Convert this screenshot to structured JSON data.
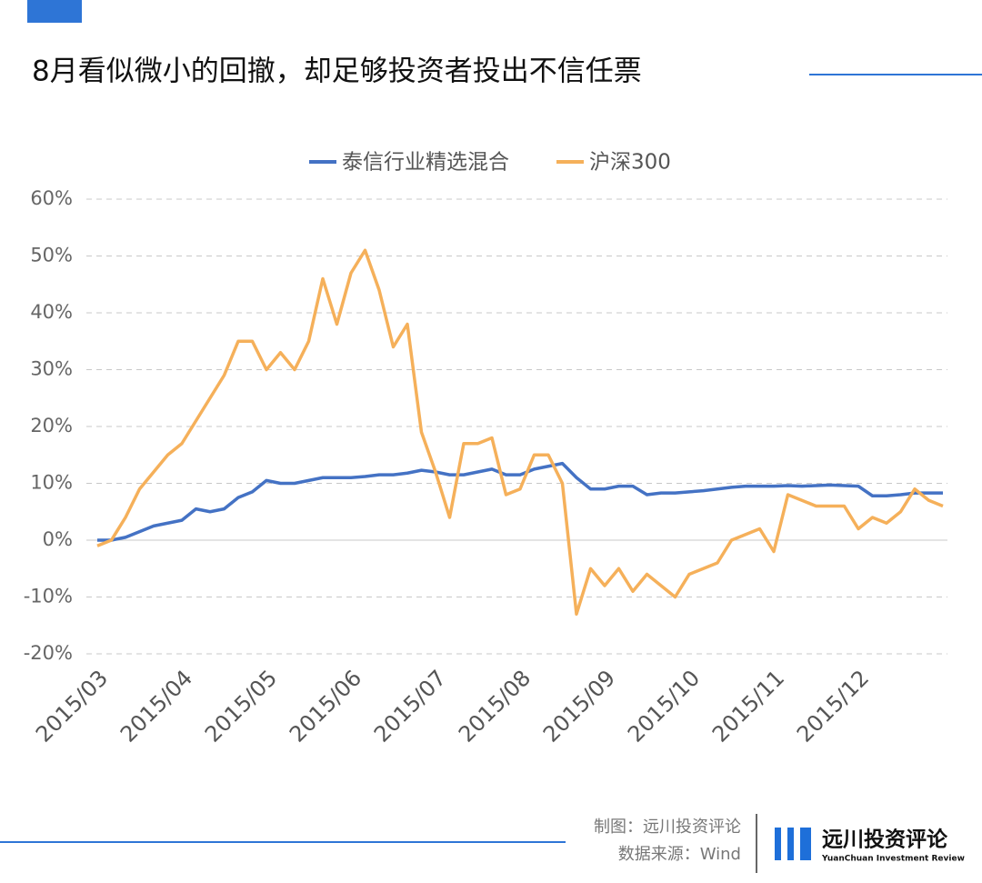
{
  "chart_data": {
    "type": "line",
    "title": "8月看似微小的回撤，却足够投资者投出不信任票",
    "categories": [
      "2015/03",
      null,
      null,
      null,
      null,
      null,
      "2015/04",
      null,
      null,
      null,
      null,
      null,
      "2015/05",
      null,
      null,
      null,
      null,
      null,
      "2015/06",
      null,
      null,
      null,
      null,
      null,
      "2015/07",
      null,
      null,
      null,
      null,
      null,
      "2015/08",
      null,
      null,
      null,
      null,
      null,
      "2015/09",
      null,
      null,
      null,
      null,
      null,
      "2015/10",
      null,
      null,
      null,
      null,
      null,
      "2015/11",
      null,
      null,
      null,
      null,
      null,
      "2015/12",
      null,
      null,
      null,
      null,
      null,
      null
    ],
    "series": [
      {
        "name": "泰信行业精选混合",
        "color": "#4472c4",
        "values": [
          0,
          0,
          0.5,
          1.5,
          2.5,
          3,
          3.5,
          5.5,
          5,
          5.5,
          7.5,
          8.5,
          10.5,
          10,
          10,
          10.5,
          11,
          11,
          11,
          11.2,
          11.5,
          11.5,
          11.8,
          12.3,
          12,
          11.5,
          11.5,
          12,
          12.5,
          11.5,
          11.5,
          12.5,
          13,
          13.5,
          11,
          9,
          9,
          9.5,
          9.5,
          8,
          8.3,
          8.3,
          8.5,
          8.7,
          9,
          9.3,
          9.5,
          9.5,
          9.5,
          9.6,
          9.5,
          9.6,
          9.7,
          9.6,
          9.5,
          7.8,
          7.8,
          8,
          8.3,
          8.3,
          8.3
        ]
      },
      {
        "name": "沪深300",
        "color": "#f5b05a",
        "values": [
          -1,
          0,
          4,
          9,
          12,
          15,
          17,
          21,
          25,
          29,
          35,
          35,
          30,
          33,
          30,
          35,
          46,
          38,
          47,
          51,
          44,
          34,
          38,
          19,
          12,
          4,
          17,
          17,
          18,
          8,
          9,
          15,
          15,
          10,
          -13,
          -5,
          -8,
          -5,
          -9,
          -6,
          -8,
          -10,
          -6,
          -5,
          -4,
          0,
          1,
          2,
          -2,
          8,
          7,
          6,
          6,
          6,
          2,
          4,
          3,
          5,
          9,
          7,
          6
        ]
      }
    ],
    "ylim": [
      -20,
      60
    ],
    "yticks": [
      {
        "value": -20,
        "label": "-20%"
      },
      {
        "value": -10,
        "label": "-10%"
      },
      {
        "value": 0,
        "label": "0%"
      },
      {
        "value": 10,
        "label": "10%"
      },
      {
        "value": 20,
        "label": "20%"
      },
      {
        "value": 30,
        "label": "30%"
      },
      {
        "value": 40,
        "label": "40%"
      },
      {
        "value": 50,
        "label": "50%"
      },
      {
        "value": 60,
        "label": "60%"
      }
    ],
    "grid": true,
    "legend": "top"
  },
  "credits": {
    "made_by": "制图：远川投资评论",
    "source": "数据来源：Wind",
    "brand": "远川投资评论",
    "brand_en": "YuanChuan Investment Review"
  }
}
